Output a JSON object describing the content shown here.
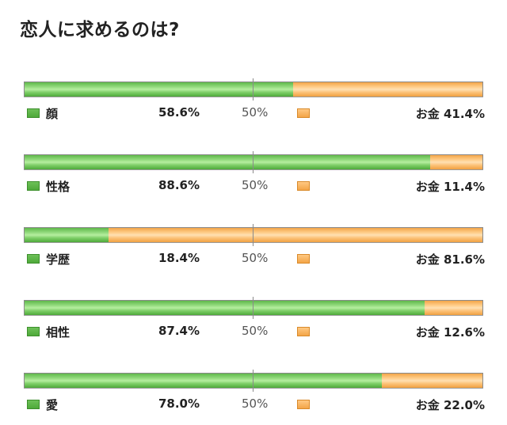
{
  "title": "恋人に求めるのは?",
  "colors": {
    "left_series": "#5fb84a",
    "right_series": "#f3a548"
  },
  "chart_data": {
    "type": "bar",
    "orientation": "horizontal-stacked-100",
    "title": "恋人に求めるのは?",
    "categories": [
      "顔",
      "性格",
      "学歴",
      "相性",
      "愛"
    ],
    "series": [
      {
        "name": "",
        "values": [
          58.6,
          88.6,
          18.4,
          87.4,
          78.0
        ]
      },
      {
        "name": "お金",
        "values": [
          41.4,
          11.4,
          81.6,
          12.6,
          22.0
        ]
      }
    ],
    "midline_label": "50%",
    "xlim": [
      0,
      100
    ]
  },
  "rows": [
    {
      "name": "顔",
      "left_value": "58.6%",
      "midline": "50%",
      "right_label": "お金 41.4%"
    },
    {
      "name": "性格",
      "left_value": "88.6%",
      "midline": "50%",
      "right_label": "お金 11.4%"
    },
    {
      "name": "学歴",
      "left_value": "18.4%",
      "midline": "50%",
      "right_label": "お金 81.6%"
    },
    {
      "name": "相性",
      "left_value": "87.4%",
      "midline": "50%",
      "right_label": "お金 12.6%"
    },
    {
      "name": "愛",
      "left_value": "78.0%",
      "midline": "50%",
      "right_label": "お金 22.0%"
    }
  ]
}
